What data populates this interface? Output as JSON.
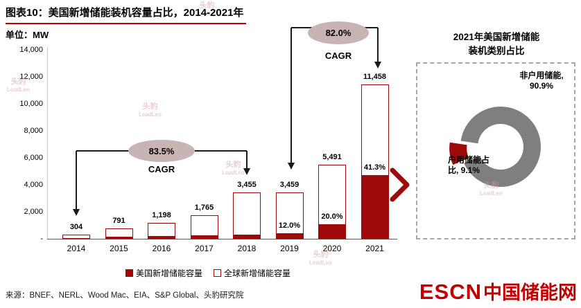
{
  "title": "图表10：美国新增储能装机容量占比，2014-2021年",
  "unit_label": "单位：MW",
  "colors": {
    "accent_dark_red": "#9c0a0a",
    "pie_gray": "#7f7f7f",
    "ellipse_fill": "#c9b4b4",
    "logo_red": "#c00000"
  },
  "chart_data": {
    "type": "bar",
    "categories": [
      "2014",
      "2015",
      "2016",
      "2017",
      "2018",
      "2019",
      "2020",
      "2021"
    ],
    "series": [
      {
        "name": "美国新增储能容量",
        "values": [
          62,
          155,
          215,
          280,
          310,
          415,
          1098,
          4732
        ],
        "color": "#9c0a0a"
      },
      {
        "name": "全球新增储能容量",
        "values": [
          304,
          791,
          1198,
          1765,
          3455,
          3459,
          5491,
          11458
        ],
        "color": "#ffffff"
      }
    ],
    "bar_labels": [
      "304",
      "791",
      "1,198",
      "1,765",
      "3,455",
      "3,459",
      "5,491",
      "11,458"
    ],
    "pct_labels": [
      "",
      "",
      "",
      "",
      "",
      "12.0%",
      "20.0%",
      "41.3%"
    ],
    "ylim": [
      0,
      14000
    ],
    "yticks": [
      "14,000",
      "12,000",
      "10,000",
      "8,000",
      "6,000",
      "4,000",
      "2,000",
      "-"
    ],
    "grid": false,
    "legend_position": "bottom",
    "annotations": [
      {
        "pct": "83.5%",
        "label": "CAGR",
        "span": "2014-2018"
      },
      {
        "pct": "82.0%",
        "label": "CAGR",
        "span": "2019-2021"
      }
    ]
  },
  "pie": {
    "title_line1": "2021年美国新增储能",
    "title_line2": "装机类别占比",
    "slices": [
      {
        "label": "非户用储能, 90.9%",
        "value": 90.9,
        "color": "#7f7f7f"
      },
      {
        "label": "户用储能占比, 9.1%",
        "value": 9.1,
        "color": "#9c0a0a"
      }
    ]
  },
  "footer": {
    "source": "来源：BNEF、NERL、Wood Mac、EIA、S&P Global、头豹研究院",
    "logo_escn": "ESCN",
    "logo_cn": "中国储能网"
  },
  "watermark": {
    "cn": "头豹",
    "en": "LeadLeo"
  }
}
